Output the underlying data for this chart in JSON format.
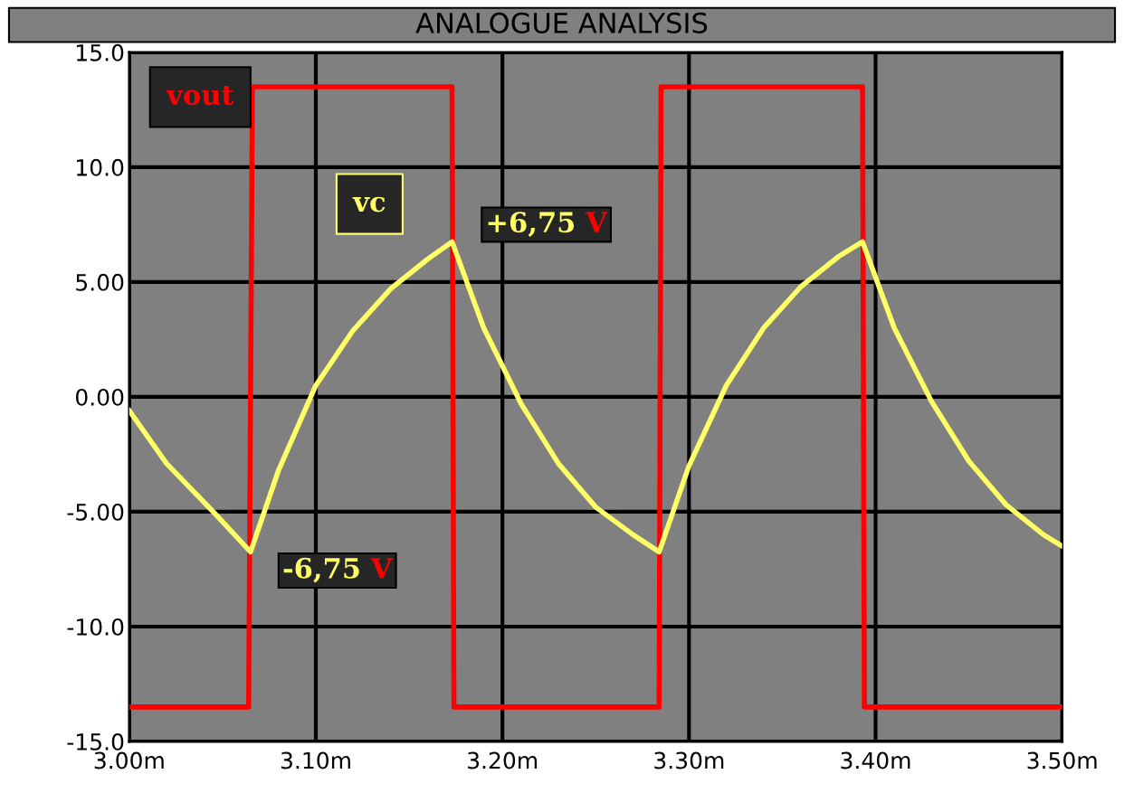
{
  "chart_data": {
    "type": "line",
    "title": "ANALOGUE ANALYSIS",
    "xlim": [
      3.0,
      3.5
    ],
    "ylim": [
      -15,
      15
    ],
    "xticks": [
      {
        "value": 3.0,
        "label": "3.00m"
      },
      {
        "value": 3.1,
        "label": "3.10m"
      },
      {
        "value": 3.2,
        "label": "3.20m"
      },
      {
        "value": 3.3,
        "label": "3.30m"
      },
      {
        "value": 3.4,
        "label": "3.40m"
      },
      {
        "value": 3.5,
        "label": "3.50m"
      }
    ],
    "yticks": [
      {
        "value": -15,
        "label": "-15.0"
      },
      {
        "value": -10,
        "label": "-10.0"
      },
      {
        "value": -5,
        "label": "-5.00"
      },
      {
        "value": 0,
        "label": "0.00"
      },
      {
        "value": 5,
        "label": "5.00"
      },
      {
        "value": 10,
        "label": "10.0"
      },
      {
        "value": 15,
        "label": "15.0"
      }
    ],
    "grid": true,
    "line_style": "solid",
    "series": [
      {
        "name": "vout",
        "color": "#ff0000",
        "x": [
          3.0,
          3.064,
          3.066,
          3.173,
          3.174,
          3.284,
          3.285,
          3.393,
          3.394,
          3.5
        ],
        "values": [
          -13.5,
          -13.5,
          13.5,
          13.5,
          -13.5,
          -13.5,
          13.5,
          13.5,
          -13.5,
          -13.5
        ]
      },
      {
        "name": "vc",
        "color": "#ffff66",
        "x": [
          3.0,
          3.02,
          3.045,
          3.065,
          3.08,
          3.1,
          3.12,
          3.14,
          3.16,
          3.173,
          3.19,
          3.21,
          3.23,
          3.25,
          3.27,
          3.284,
          3.3,
          3.32,
          3.34,
          3.36,
          3.38,
          3.393,
          3.41,
          3.43,
          3.45,
          3.47,
          3.49,
          3.5
        ],
        "values": [
          -0.6,
          -2.9,
          -5.0,
          -6.75,
          -3.2,
          0.5,
          2.9,
          4.7,
          6.0,
          6.75,
          3.0,
          -0.3,
          -2.9,
          -4.8,
          -6.0,
          -6.75,
          -3.0,
          0.5,
          3.0,
          4.8,
          6.1,
          6.75,
          3.0,
          -0.2,
          -2.8,
          -4.7,
          -6.0,
          -6.5
        ]
      }
    ],
    "annotations": [
      "+6,75 V",
      "-6,75 V"
    ]
  }
}
